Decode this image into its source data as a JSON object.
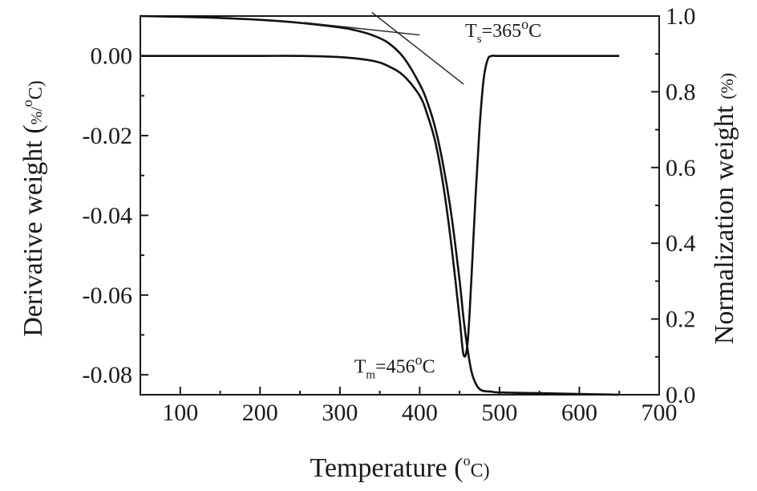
{
  "chart_data": {
    "type": "line",
    "title": "",
    "xlabel": {
      "main": "Temperature (",
      "sup": "o",
      "unit": "C)"
    },
    "ylabel_left": {
      "main": "Derivative weight (",
      "unit": "%/",
      "sup": "o",
      "end": "C)"
    },
    "ylabel_right": {
      "text": "Normalization weight",
      "unit": "(%)"
    },
    "xlim": [
      50,
      700
    ],
    "ylim_left": [
      -0.085,
      0.01
    ],
    "ylim_right": [
      0.0,
      1.0
    ],
    "x_ticks": [
      100,
      200,
      300,
      400,
      500,
      600,
      700
    ],
    "x_tick_labels": [
      "100",
      "200",
      "300",
      "400",
      "500",
      "600",
      "700"
    ],
    "y_left_ticks": [
      0.0,
      -0.02,
      -0.04,
      -0.06,
      -0.08
    ],
    "y_left_tick_labels": [
      "0.00",
      "-0.02",
      "-0.04",
      "-0.06",
      "-0.08"
    ],
    "y_right_ticks": [
      0.0,
      0.2,
      0.4,
      0.6,
      0.8,
      1.0
    ],
    "y_right_tick_labels": [
      "0.0",
      "0.2",
      "0.4",
      "0.6",
      "0.8",
      "1.0"
    ],
    "series": [
      {
        "axis": "right",
        "x": [
          50,
          100,
          150,
          200,
          250,
          300,
          320,
          340,
          360,
          380,
          400,
          410,
          420,
          430,
          440,
          450,
          455,
          460,
          465,
          470,
          475,
          480,
          490,
          500,
          550,
          600,
          650
        ],
        "y": [
          1.0,
          0.998,
          0.995,
          0.99,
          0.982,
          0.97,
          0.962,
          0.95,
          0.93,
          0.89,
          0.82,
          0.77,
          0.7,
          0.6,
          0.47,
          0.3,
          0.2,
          0.12,
          0.06,
          0.03,
          0.015,
          0.01,
          0.008,
          0.006,
          0.004,
          0.002,
          0.0
        ]
      },
      {
        "axis": "left",
        "x": [
          50,
          100,
          150,
          200,
          250,
          300,
          340,
          360,
          380,
          400,
          410,
          420,
          430,
          440,
          450,
          455,
          460,
          465,
          470,
          475,
          480,
          485,
          490,
          500,
          550,
          600,
          650
        ],
        "y": [
          0.0,
          0.0,
          0.0,
          0.0,
          0.0,
          -0.0003,
          -0.0012,
          -0.0025,
          -0.005,
          -0.01,
          -0.015,
          -0.022,
          -0.033,
          -0.048,
          -0.066,
          -0.075,
          -0.072,
          -0.055,
          -0.035,
          -0.018,
          -0.006,
          -0.001,
          0.0,
          0.0,
          0.0,
          0.0,
          0.0
        ]
      }
    ],
    "tangent_lines": [
      {
        "axis": "right",
        "x": [
          255,
          400
        ],
        "y": [
          0.983,
          0.95
        ]
      },
      {
        "axis": "right",
        "x": [
          340,
          455
        ],
        "y": [
          1.01,
          0.82
        ]
      }
    ],
    "annotations": [
      {
        "id": "ts",
        "main": "T",
        "sub": "s",
        "rest": "=365",
        "sup": "o",
        "end": "C",
        "x": 457,
        "y_right": 0.945
      },
      {
        "id": "tm",
        "main": "T",
        "sub": "m",
        "rest": "=456",
        "sup": "o",
        "end": "C",
        "x": 318,
        "y_left": -0.0795
      }
    ],
    "grid": false,
    "legend": "none"
  }
}
